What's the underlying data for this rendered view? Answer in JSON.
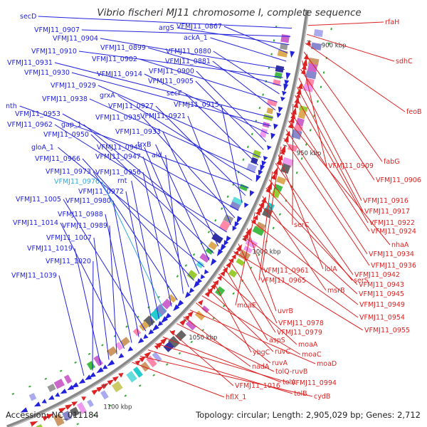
{
  "title": "Vibrio fischeri MJ11 chromosome I, complete sequence",
  "footer": {
    "accession": "Accession: NC_011184",
    "summary": "Topology: circular; Length: 2,905,029 bp; Genes: 2,712"
  },
  "colors": {
    "forward": "#2222dd",
    "reverse": "#dd2222",
    "highlight": "#33aadd",
    "backbone": "#888888",
    "background": "#ffffff"
  },
  "ticks": [
    {
      "label": "900 kbp"
    },
    {
      "label": "950 kbp"
    },
    {
      "label": "1000 kbp"
    },
    {
      "label": "1050 kbp"
    },
    {
      "label": "1100 kbp"
    }
  ],
  "left_labels": [
    {
      "text": "secD"
    },
    {
      "text": "VFMJ11_0907"
    },
    {
      "text": "argS"
    },
    {
      "text": "VFMJ11_0867"
    },
    {
      "text": "ackA_1"
    },
    {
      "text": "VFMJ11_0904"
    },
    {
      "text": "VFMJ11_0910"
    },
    {
      "text": "VFMJ11_0899"
    },
    {
      "text": "VFMJ11_0880"
    },
    {
      "text": "VFMJ11_0902"
    },
    {
      "text": "VFMJ11_0881"
    },
    {
      "text": "VFMJ11_0931"
    },
    {
      "text": "VFMJ11_0930"
    },
    {
      "text": "VFMJ11_0914"
    },
    {
      "text": "VFMJ11_0900"
    },
    {
      "text": "VFMJ11_0905"
    },
    {
      "text": "VFMJ11_0929"
    },
    {
      "text": "secF"
    },
    {
      "text": "VFMJ11_0938"
    },
    {
      "text": "grxA"
    },
    {
      "text": "nth"
    },
    {
      "text": "VFMJ11_0927"
    },
    {
      "text": "VFMJ11_0915"
    },
    {
      "text": "VFMJ11_0953"
    },
    {
      "text": "VFMJ11_0935"
    },
    {
      "text": "VFMJ11_0921"
    },
    {
      "text": "VFMJ11_0962"
    },
    {
      "text": "gap_1"
    },
    {
      "text": "VFMJ11_0933"
    },
    {
      "text": "VFMJ11_0950"
    },
    {
      "text": "trxB"
    },
    {
      "text": "gloA_1"
    },
    {
      "text": "VFMJ11_0948"
    },
    {
      "text": "VFMJ11_0966"
    },
    {
      "text": "VFMJ11_0947"
    },
    {
      "text": "ald"
    },
    {
      "text": "VFMJ11_0973"
    },
    {
      "text": "VFMJ11_0956"
    },
    {
      "text": "VFMJ11_0976"
    },
    {
      "text": "rnt"
    },
    {
      "text": "VFMJ11_0972"
    },
    {
      "text": "VFMJ11_1005"
    },
    {
      "text": "VFMJ11_0980"
    },
    {
      "text": "VFMJ11_0988"
    },
    {
      "text": "VFMJ11_1014"
    },
    {
      "text": "VFMJ11_0989"
    },
    {
      "text": "VFMJ11_1007"
    },
    {
      "text": "VFMJ11_1019"
    },
    {
      "text": "VFMJ11_1020"
    },
    {
      "text": "VFMJ11_1039"
    }
  ],
  "right_labels": [
    {
      "text": "rfaH"
    },
    {
      "text": "sdhC"
    },
    {
      "text": "feoB"
    },
    {
      "text": "fabG"
    },
    {
      "text": "VFMJ11_0909"
    },
    {
      "text": "VFMJ11_0906"
    },
    {
      "text": "VFMJ11_0916"
    },
    {
      "text": "VFMJ11_0917"
    },
    {
      "text": "VFMJ11_0922"
    },
    {
      "text": "serC"
    },
    {
      "text": "VFMJ11_0924"
    },
    {
      "text": "nhaA"
    },
    {
      "text": "VFMJ11_0934"
    },
    {
      "text": "VFMJ11_0936"
    },
    {
      "text": "VFMJ11_0961"
    },
    {
      "text": "lolA"
    },
    {
      "text": "VFMJ11_0942"
    },
    {
      "text": "VFMJ11_0965"
    },
    {
      "text": "serS"
    },
    {
      "text": "VFMJ11_0943"
    },
    {
      "text": "msrB"
    },
    {
      "text": "VFMJ11_0945"
    },
    {
      "text": "moaE"
    },
    {
      "text": "VFMJ11_0949"
    },
    {
      "text": "uvrB"
    },
    {
      "text": "VFMJ11_0954"
    },
    {
      "text": "VFMJ11_0978"
    },
    {
      "text": "VFMJ11_0955"
    },
    {
      "text": "VFMJ11_0979"
    },
    {
      "text": "aspS"
    },
    {
      "text": "moaA"
    },
    {
      "text": "ybgC"
    },
    {
      "text": "ruvC"
    },
    {
      "text": "moaC"
    },
    {
      "text": "ruvA"
    },
    {
      "text": "moaD"
    },
    {
      "text": "nadA"
    },
    {
      "text": "tolQ-ruvB"
    },
    {
      "text": "VFMJ11_1016"
    },
    {
      "text": "tolA"
    },
    {
      "text": "VFMJ11_0994"
    },
    {
      "text": "tolB"
    },
    {
      "text": "cydB"
    },
    {
      "text": "hflX_1"
    }
  ]
}
